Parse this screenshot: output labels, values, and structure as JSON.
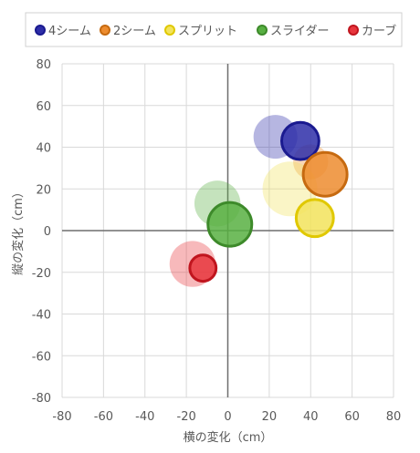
{
  "chart_data": {
    "type": "bubble",
    "title": "",
    "xlabel": "横の変化（cm）",
    "ylabel": "縦の変化（cm）",
    "xlim": [
      -80,
      80
    ],
    "ylim": [
      -80,
      80
    ],
    "x_ticks": [
      -80,
      -60,
      -40,
      -20,
      0,
      20,
      40,
      60,
      80
    ],
    "y_ticks": [
      -80,
      -60,
      -40,
      -20,
      0,
      20,
      40,
      60,
      80
    ],
    "grid": true,
    "legend_position": "top",
    "series": [
      {
        "name": "4シーム",
        "fill": "#2e2ea8",
        "stroke": "#1a1a90",
        "points": [
          {
            "x": 23,
            "y": 45,
            "size": 1,
            "faded": true
          },
          {
            "x": 35,
            "y": 43,
            "size": 0.85,
            "faded": false
          }
        ]
      },
      {
        "name": "2シーム",
        "fill": "#ed8c2f",
        "stroke": "#c66a10",
        "points": [
          {
            "x": 40,
            "y": 33,
            "size": 0.8,
            "faded": true
          },
          {
            "x": 47,
            "y": 27,
            "size": 1,
            "faded": false
          }
        ]
      },
      {
        "name": "スプリット",
        "fill": "#f2e35c",
        "stroke": "#e0c800",
        "points": [
          {
            "x": 30,
            "y": 20,
            "size": 1.25,
            "faded": true
          },
          {
            "x": 42,
            "y": 6,
            "size": 0.85,
            "faded": false
          }
        ]
      },
      {
        "name": "スライダー",
        "fill": "#58b042",
        "stroke": "#3d8a2a",
        "points": [
          {
            "x": -5,
            "y": 13,
            "size": 1.05,
            "faded": true
          },
          {
            "x": 1,
            "y": 3,
            "size": 1,
            "faded": false
          }
        ]
      },
      {
        "name": "カーブ",
        "fill": "#e8363d",
        "stroke": "#c0151e",
        "points": [
          {
            "x": -17,
            "y": -16,
            "size": 1.05,
            "faded": true
          },
          {
            "x": -12,
            "y": -18,
            "size": 0.6,
            "faded": false
          }
        ]
      }
    ]
  }
}
